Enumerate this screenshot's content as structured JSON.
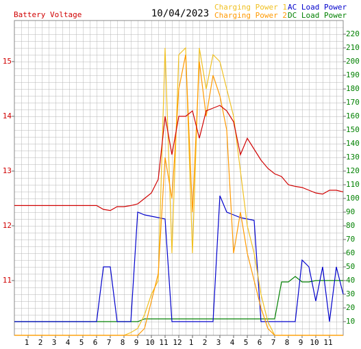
{
  "chart_data": {
    "type": "line",
    "title": "10/04/2023",
    "x": [
      0,
      0.5,
      1,
      1.5,
      2,
      2.5,
      3,
      3.5,
      4,
      4.5,
      5,
      5.5,
      6,
      6.5,
      7,
      7.5,
      8,
      8.5,
      9,
      9.5,
      10,
      10.5,
      11,
      11.5,
      12,
      12.5,
      13,
      13.5,
      14,
      14.5,
      15,
      15.5,
      16,
      16.5,
      17,
      17.5,
      18,
      18.5,
      19,
      19.5,
      20,
      20.5,
      21,
      21.5,
      22,
      22.5,
      23,
      23.5,
      24
    ],
    "xlim": [
      0,
      24
    ],
    "xticks": [
      1,
      2,
      3,
      4,
      5,
      6,
      7,
      8,
      9,
      10,
      11,
      12,
      {
        "value": 13,
        "label": "1"
      },
      {
        "value": 14,
        "label": "2"
      },
      {
        "value": 15,
        "label": "3"
      },
      {
        "value": 16,
        "label": "4"
      },
      {
        "value": 17,
        "label": "5"
      },
      {
        "value": 18,
        "label": "6"
      },
      {
        "value": 19,
        "label": "7"
      },
      {
        "value": 20,
        "label": "8"
      },
      {
        "value": 21,
        "label": "9"
      },
      {
        "value": 22,
        "label": "10"
      },
      {
        "value": 23,
        "label": "11"
      }
    ],
    "ylim": [
      10,
      15.75
    ],
    "yticks": [
      11,
      12,
      13,
      14,
      15
    ],
    "y2lim": [
      0,
      230
    ],
    "y2ticks": [
      10,
      20,
      30,
      40,
      50,
      60,
      70,
      80,
      90,
      100,
      110,
      120,
      130,
      140,
      150,
      160,
      170,
      180,
      190,
      200,
      210,
      220
    ],
    "grid": true,
    "series": [
      {
        "name": "Battery Voltage",
        "color": "#d00000",
        "axis": "y",
        "values": [
          12.37,
          12.37,
          12.37,
          12.37,
          12.37,
          12.37,
          12.37,
          12.37,
          12.37,
          12.37,
          12.37,
          12.37,
          12.37,
          12.3,
          12.28,
          12.35,
          12.35,
          12.37,
          12.4,
          12.5,
          12.6,
          12.85,
          14.0,
          13.3,
          14.0,
          14.0,
          14.1,
          13.6,
          14.1,
          14.15,
          14.2,
          14.1,
          13.9,
          13.3,
          13.6,
          13.4,
          13.2,
          13.05,
          12.95,
          12.9,
          12.75,
          12.72,
          12.7,
          12.65,
          12.6,
          12.58,
          12.65,
          12.65,
          12.62
        ]
      },
      {
        "name": "Charging Power 1",
        "color": "#f0c020",
        "axis": "y2",
        "values": [
          0,
          0,
          0,
          0,
          0,
          0,
          0,
          0,
          0,
          0,
          0,
          0,
          0,
          0,
          0,
          0,
          0,
          2,
          5,
          15,
          30,
          40,
          210,
          60,
          205,
          210,
          60,
          210,
          180,
          205,
          200,
          180,
          160,
          120,
          80,
          60,
          30,
          10,
          0,
          0,
          0,
          0,
          0,
          0,
          0,
          0,
          0,
          0,
          0
        ]
      },
      {
        "name": "Charging Power 2",
        "color": "#ff9900",
        "axis": "y2",
        "values": [
          0,
          0,
          0,
          0,
          0,
          0,
          0,
          0,
          0,
          0,
          0,
          0,
          0,
          0,
          0,
          0,
          0,
          0,
          0,
          5,
          25,
          45,
          130,
          100,
          180,
          205,
          90,
          200,
          160,
          190,
          175,
          150,
          60,
          90,
          60,
          40,
          20,
          5,
          0,
          0,
          0,
          0,
          0,
          0,
          0,
          0,
          0,
          0,
          0
        ]
      },
      {
        "name": "AC Load Power",
        "color": "#0000cc",
        "axis": "y2",
        "values": [
          10,
          10,
          10,
          10,
          10,
          10,
          10,
          10,
          10,
          10,
          10,
          10,
          10,
          50,
          50,
          10,
          10,
          10,
          90,
          88,
          87,
          86,
          85,
          10,
          10,
          10,
          10,
          10,
          10,
          10,
          102,
          90,
          88,
          86,
          85,
          84,
          10,
          10,
          10,
          10,
          10,
          10,
          55,
          50,
          25,
          50,
          10,
          50,
          30
        ]
      },
      {
        "name": "DC Load Power",
        "color": "#008000",
        "axis": "y2",
        "values": [
          10,
          10,
          10,
          10,
          10,
          10,
          10,
          10,
          10,
          10,
          10,
          10,
          10,
          10,
          10,
          10,
          10,
          10,
          10,
          12,
          12,
          12,
          12,
          12,
          12,
          12,
          12,
          12,
          12,
          12,
          12,
          12,
          12,
          12,
          12,
          12,
          12,
          12,
          12,
          39,
          39,
          43,
          39,
          39,
          40,
          40,
          40,
          40,
          40
        ]
      }
    ]
  }
}
